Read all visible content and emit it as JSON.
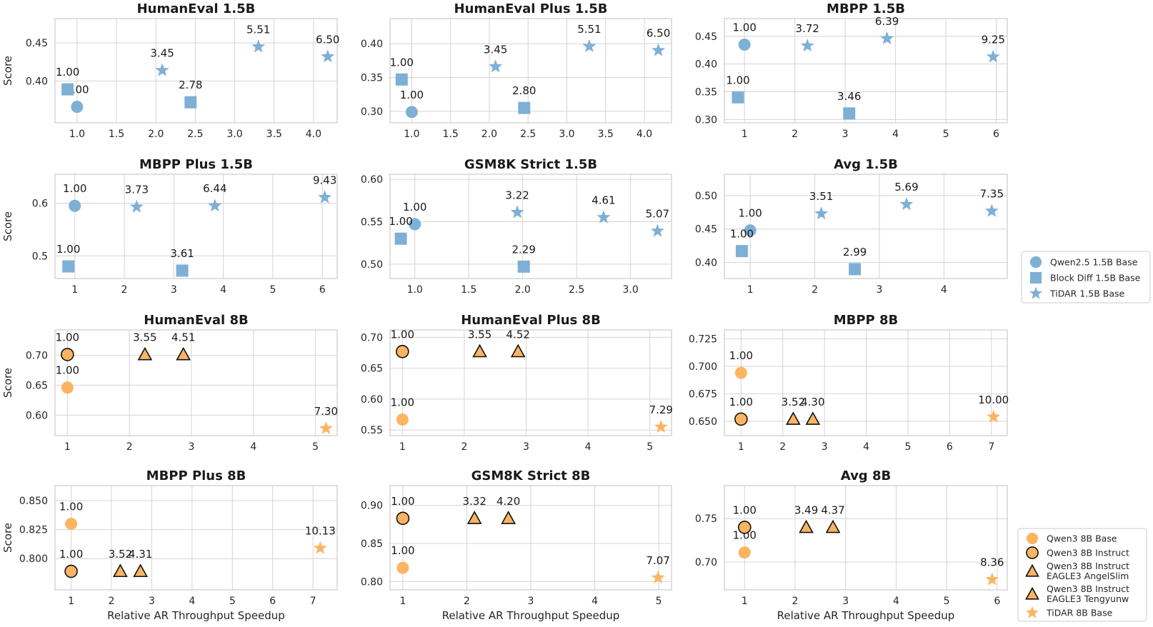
{
  "colors": {
    "blue": "#7eb0d5",
    "orange": "#fdb462",
    "grid": "#d4d4d4",
    "frame": "#cccccc",
    "outline": "#111111"
  },
  "chart_data": [
    {
      "type": "scatter",
      "title": "HumanEval 1.5B",
      "ylabel": "Score",
      "xlabel": "",
      "xlim": [
        0.72,
        4.3
      ],
      "ylim": [
        0.345,
        0.482
      ],
      "xticks": [
        1.0,
        1.5,
        2.0,
        2.5,
        3.0,
        3.5,
        4.0
      ],
      "yticks": [
        0.4,
        0.45
      ],
      "xfmt": 1,
      "yfmt": 2,
      "points": [
        {
          "series": "qwen15",
          "x": 1.0,
          "y": 0.366,
          "label": "1.00"
        },
        {
          "series": "blockdiff15",
          "x": 0.88,
          "y": 0.389,
          "label": "1.00"
        },
        {
          "series": "tidar15",
          "x": 2.08,
          "y": 0.414,
          "label": "3.45"
        },
        {
          "series": "blockdiff15",
          "x": 2.44,
          "y": 0.372,
          "label": "2.78"
        },
        {
          "series": "tidar15",
          "x": 3.3,
          "y": 0.445,
          "label": "5.51"
        },
        {
          "series": "tidar15",
          "x": 4.18,
          "y": 0.432,
          "label": "6.50"
        }
      ]
    },
    {
      "type": "scatter",
      "title": "HumanEval Plus 1.5B",
      "ylabel": "",
      "xlabel": "",
      "xlim": [
        0.72,
        4.35
      ],
      "ylim": [
        0.283,
        0.437
      ],
      "xticks": [
        1.0,
        1.5,
        2.0,
        2.5,
        3.0,
        3.5,
        4.0
      ],
      "yticks": [
        0.3,
        0.35,
        0.4
      ],
      "xfmt": 1,
      "yfmt": 2,
      "points": [
        {
          "series": "qwen15",
          "x": 1.0,
          "y": 0.299,
          "label": "1.00"
        },
        {
          "series": "blockdiff15",
          "x": 0.87,
          "y": 0.347,
          "label": "1.00"
        },
        {
          "series": "tidar15",
          "x": 2.08,
          "y": 0.366,
          "label": "3.45"
        },
        {
          "series": "blockdiff15",
          "x": 2.45,
          "y": 0.305,
          "label": "2.80"
        },
        {
          "series": "tidar15",
          "x": 3.29,
          "y": 0.396,
          "label": "5.51"
        },
        {
          "series": "tidar15",
          "x": 4.18,
          "y": 0.39,
          "label": "6.50"
        }
      ]
    },
    {
      "type": "scatter",
      "title": "MBPP 1.5B",
      "ylabel": "",
      "xlabel": "",
      "xlim": [
        0.6,
        6.22
      ],
      "ylim": [
        0.294,
        0.482
      ],
      "xticks": [
        1,
        2,
        3,
        4,
        5,
        6
      ],
      "yticks": [
        0.3,
        0.35,
        0.4,
        0.45
      ],
      "xfmt": 0,
      "yfmt": 2,
      "points": [
        {
          "series": "qwen15",
          "x": 1.0,
          "y": 0.435,
          "label": "1.00"
        },
        {
          "series": "blockdiff15",
          "x": 0.87,
          "y": 0.34,
          "label": "1.00"
        },
        {
          "series": "tidar15",
          "x": 2.25,
          "y": 0.433,
          "label": "3.72"
        },
        {
          "series": "blockdiff15",
          "x": 3.08,
          "y": 0.311,
          "label": "3.46"
        },
        {
          "series": "tidar15",
          "x": 3.83,
          "y": 0.446,
          "label": "6.39"
        },
        {
          "series": "tidar15",
          "x": 5.94,
          "y": 0.413,
          "label": "9.25"
        }
      ]
    },
    {
      "type": "scatter",
      "title": "MBPP Plus 1.5B",
      "ylabel": "Score",
      "xlabel": "",
      "xlim": [
        0.6,
        6.3
      ],
      "ylim": [
        0.457,
        0.655
      ],
      "xticks": [
        1,
        2,
        3,
        4,
        5,
        6
      ],
      "yticks": [
        0.5,
        0.6
      ],
      "xfmt": 0,
      "yfmt": 1,
      "points": [
        {
          "series": "qwen15",
          "x": 1.0,
          "y": 0.595,
          "label": "1.00"
        },
        {
          "series": "blockdiff15",
          "x": 0.87,
          "y": 0.48,
          "label": "1.00"
        },
        {
          "series": "tidar15",
          "x": 2.25,
          "y": 0.593,
          "label": "3.73"
        },
        {
          "series": "blockdiff15",
          "x": 3.17,
          "y": 0.472,
          "label": "3.61"
        },
        {
          "series": "tidar15",
          "x": 3.83,
          "y": 0.595,
          "label": "6.44"
        },
        {
          "series": "tidar15",
          "x": 6.05,
          "y": 0.611,
          "label": "9.43"
        }
      ]
    },
    {
      "type": "scatter",
      "title": "GSM8K Strict 1.5B",
      "ylabel": "",
      "xlabel": "",
      "xlim": [
        0.77,
        3.38
      ],
      "ylim": [
        0.483,
        0.606
      ],
      "xticks": [
        1.0,
        1.5,
        2.0,
        2.5,
        3.0
      ],
      "yticks": [
        0.5,
        0.55,
        0.6
      ],
      "xfmt": 1,
      "yfmt": 2,
      "points": [
        {
          "series": "qwen15",
          "x": 1.0,
          "y": 0.547,
          "label": "1.00"
        },
        {
          "series": "blockdiff15",
          "x": 0.87,
          "y": 0.53,
          "label": "1.00"
        },
        {
          "series": "tidar15",
          "x": 1.95,
          "y": 0.561,
          "label": "3.22"
        },
        {
          "series": "blockdiff15",
          "x": 2.01,
          "y": 0.497,
          "label": "2.29"
        },
        {
          "series": "tidar15",
          "x": 2.75,
          "y": 0.555,
          "label": "4.61"
        },
        {
          "series": "tidar15",
          "x": 3.25,
          "y": 0.539,
          "label": "5.07"
        }
      ]
    },
    {
      "type": "scatter",
      "title": "Avg 1.5B",
      "ylabel": "",
      "xlabel": "",
      "xlim": [
        0.6,
        4.98
      ],
      "ylim": [
        0.376,
        0.532
      ],
      "xticks": [
        1,
        2,
        3,
        4
      ],
      "yticks": [
        0.4,
        0.45,
        0.5
      ],
      "xfmt": 0,
      "yfmt": 2,
      "points": [
        {
          "series": "qwen15",
          "x": 1.0,
          "y": 0.448,
          "label": "1.00"
        },
        {
          "series": "blockdiff15",
          "x": 0.87,
          "y": 0.417,
          "label": "1.00"
        },
        {
          "series": "tidar15",
          "x": 2.1,
          "y": 0.473,
          "label": "3.51"
        },
        {
          "series": "blockdiff15",
          "x": 2.62,
          "y": 0.39,
          "label": "2.99"
        },
        {
          "series": "tidar15",
          "x": 3.42,
          "y": 0.487,
          "label": "5.69"
        },
        {
          "series": "tidar15",
          "x": 4.74,
          "y": 0.477,
          "label": "7.35"
        }
      ]
    },
    {
      "type": "scatter",
      "title": "HumanEval 8B",
      "ylabel": "Score",
      "xlabel": "",
      "xlim": [
        0.8,
        5.35
      ],
      "ylim": [
        0.566,
        0.742
      ],
      "xticks": [
        1,
        2,
        3,
        4,
        5
      ],
      "yticks": [
        0.6,
        0.65,
        0.7
      ],
      "xfmt": 0,
      "yfmt": 2,
      "points": [
        {
          "series": "qwen8base",
          "x": 1.0,
          "y": 0.646,
          "label": "1.00"
        },
        {
          "series": "qwen8instruct",
          "x": 1.0,
          "y": 0.701,
          "label": "1.00"
        },
        {
          "series": "eagle_angel",
          "x": 2.25,
          "y": 0.701,
          "label": "3.55"
        },
        {
          "series": "eagle_teng",
          "x": 2.87,
          "y": 0.701,
          "label": "4.51"
        },
        {
          "series": "tidar8",
          "x": 5.17,
          "y": 0.578,
          "label": "7.30"
        }
      ]
    },
    {
      "type": "scatter",
      "title": "HumanEval Plus 8B",
      "ylabel": "",
      "xlabel": "",
      "xlim": [
        0.8,
        5.35
      ],
      "ylim": [
        0.541,
        0.712
      ],
      "xticks": [
        1,
        2,
        3,
        4,
        5
      ],
      "yticks": [
        0.55,
        0.6,
        0.65,
        0.7
      ],
      "xfmt": 0,
      "yfmt": 2,
      "points": [
        {
          "series": "qwen8base",
          "x": 1.0,
          "y": 0.567,
          "label": "1.00"
        },
        {
          "series": "qwen8instruct",
          "x": 1.0,
          "y": 0.677,
          "label": "1.00"
        },
        {
          "series": "eagle_angel",
          "x": 2.25,
          "y": 0.677,
          "label": "3.55"
        },
        {
          "series": "eagle_teng",
          "x": 2.87,
          "y": 0.677,
          "label": "4.52"
        },
        {
          "series": "tidar8",
          "x": 5.18,
          "y": 0.555,
          "label": "7.29"
        }
      ]
    },
    {
      "type": "scatter",
      "title": "MBPP 8B",
      "ylabel": "",
      "xlabel": "",
      "xlim": [
        0.6,
        7.38
      ],
      "ylim": [
        0.637,
        0.733
      ],
      "xticks": [
        1,
        2,
        3,
        4,
        5,
        6,
        7
      ],
      "yticks": [
        0.65,
        0.675,
        0.7,
        0.725
      ],
      "xfmt": 0,
      "yfmt": 3,
      "points": [
        {
          "series": "qwen8base",
          "x": 1.0,
          "y": 0.694,
          "label": "1.00"
        },
        {
          "series": "qwen8instruct",
          "x": 1.0,
          "y": 0.652,
          "label": "1.00"
        },
        {
          "series": "eagle_angel",
          "x": 2.25,
          "y": 0.652,
          "label": "3.52"
        },
        {
          "series": "eagle_teng",
          "x": 2.72,
          "y": 0.652,
          "label": "4.30"
        },
        {
          "series": "tidar8",
          "x": 7.05,
          "y": 0.654,
          "label": "10.00"
        }
      ]
    },
    {
      "type": "scatter",
      "title": "MBPP Plus 8B",
      "ylabel": "Score",
      "xlabel": "Relative AR Throughput Speedup",
      "xlim": [
        0.6,
        7.6
      ],
      "ylim": [
        0.773,
        0.863
      ],
      "xticks": [
        1,
        2,
        3,
        4,
        5,
        6,
        7
      ],
      "yticks": [
        0.8,
        0.825,
        0.85
      ],
      "xfmt": 0,
      "yfmt": 3,
      "points": [
        {
          "series": "qwen8base",
          "x": 1.0,
          "y": 0.83,
          "label": "1.00"
        },
        {
          "series": "qwen8instruct",
          "x": 1.0,
          "y": 0.789,
          "label": "1.00"
        },
        {
          "series": "eagle_angel",
          "x": 2.22,
          "y": 0.789,
          "label": "3.52"
        },
        {
          "series": "eagle_teng",
          "x": 2.72,
          "y": 0.789,
          "label": "4.31"
        },
        {
          "series": "tidar8",
          "x": 7.18,
          "y": 0.809,
          "label": "10.13"
        }
      ]
    },
    {
      "type": "scatter",
      "title": "GSM8K Strict 8B",
      "ylabel": "",
      "xlabel": "Relative AR Throughput Speedup",
      "xlim": [
        0.8,
        5.2
      ],
      "ylim": [
        0.789,
        0.926
      ],
      "xticks": [
        1,
        2,
        3,
        4,
        5
      ],
      "yticks": [
        0.8,
        0.85,
        0.9
      ],
      "xfmt": 0,
      "yfmt": 2,
      "points": [
        {
          "series": "qwen8base",
          "x": 1.0,
          "y": 0.818,
          "label": "1.00"
        },
        {
          "series": "qwen8instruct",
          "x": 1.0,
          "y": 0.883,
          "label": "1.00"
        },
        {
          "series": "eagle_angel",
          "x": 2.12,
          "y": 0.883,
          "label": "3.32"
        },
        {
          "series": "eagle_teng",
          "x": 2.65,
          "y": 0.883,
          "label": "4.20"
        },
        {
          "series": "tidar8",
          "x": 4.99,
          "y": 0.805,
          "label": "7.07"
        }
      ]
    },
    {
      "type": "scatter",
      "title": "Avg 8B",
      "ylabel": "",
      "xlabel": "Relative AR Throughput Speedup",
      "xlim": [
        0.6,
        6.2
      ],
      "ylim": [
        0.668,
        0.788
      ],
      "xticks": [
        1,
        2,
        3,
        4,
        5,
        6
      ],
      "yticks": [
        0.7,
        0.75
      ],
      "xfmt": 0,
      "yfmt": 2,
      "points": [
        {
          "series": "qwen8base",
          "x": 1.0,
          "y": 0.711,
          "label": "1.00"
        },
        {
          "series": "qwen8instruct",
          "x": 1.0,
          "y": 0.74,
          "label": "1.00"
        },
        {
          "series": "eagle_angel",
          "x": 2.22,
          "y": 0.74,
          "label": "3.49"
        },
        {
          "series": "eagle_teng",
          "x": 2.75,
          "y": 0.74,
          "label": "4.37"
        },
        {
          "series": "tidar8",
          "x": 5.9,
          "y": 0.68,
          "label": "8.36"
        }
      ]
    }
  ],
  "series_styles": {
    "qwen15": {
      "marker": "circle",
      "color": "blue",
      "edge": false
    },
    "blockdiff15": {
      "marker": "square",
      "color": "blue",
      "edge": false
    },
    "tidar15": {
      "marker": "star",
      "color": "blue",
      "edge": false
    },
    "qwen8base": {
      "marker": "circle",
      "color": "orange",
      "edge": false
    },
    "qwen8instruct": {
      "marker": "circle",
      "color": "orange",
      "edge": true
    },
    "eagle_angel": {
      "marker": "triangle",
      "color": "orange",
      "edge": true
    },
    "eagle_teng": {
      "marker": "triangle",
      "color": "orange",
      "edge": true
    },
    "tidar8": {
      "marker": "star",
      "color": "orange",
      "edge": false
    }
  },
  "legend_top": [
    {
      "series": "qwen15",
      "label": [
        "Qwen2.5 1.5B Base"
      ]
    },
    {
      "series": "blockdiff15",
      "label": [
        "Block Diff 1.5B Base"
      ]
    },
    {
      "series": "tidar15",
      "label": [
        "TiDAR 1.5B Base"
      ]
    }
  ],
  "legend_bottom": [
    {
      "series": "qwen8base",
      "label": [
        "Qwen3 8B Base"
      ]
    },
    {
      "series": "qwen8instruct",
      "label": [
        "Qwen3 8B Instruct"
      ]
    },
    {
      "series": "eagle_angel",
      "label": [
        "Qwen3 8B Instruct",
        "EAGLE3 AngelSlim"
      ]
    },
    {
      "series": "eagle_teng",
      "label": [
        "Qwen3 8B Instruct",
        "EAGLE3 Tengyunw"
      ]
    },
    {
      "series": "tidar8",
      "label": [
        "TiDAR 8B Base"
      ]
    }
  ]
}
